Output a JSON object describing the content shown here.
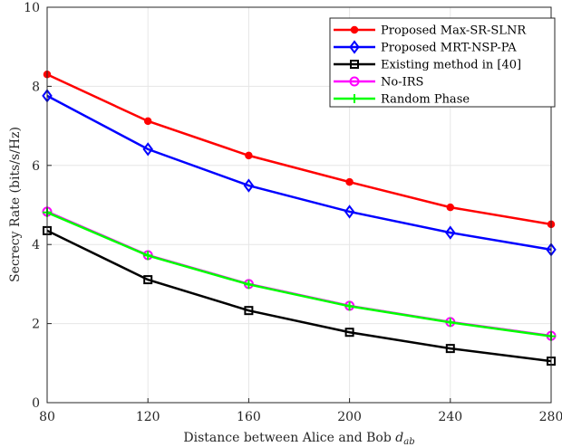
{
  "chart_data": {
    "type": "line",
    "title": "",
    "xlabel": "Distance between Alice and Bob",
    "xlabel_math": "d",
    "xlabel_sub": "ab",
    "ylabel": "Secrecy Rate (bits/s/Hz)",
    "xlim": [
      80,
      280
    ],
    "ylim": [
      0,
      10
    ],
    "xticks": [
      80,
      120,
      160,
      200,
      240,
      280
    ],
    "yticks": [
      0,
      2,
      4,
      6,
      8,
      10
    ],
    "grid": true,
    "legend_position": "top-right",
    "x": [
      80,
      120,
      160,
      200,
      240,
      280
    ],
    "series": [
      {
        "name": "Proposed Max-SR-SLNR",
        "color": "#ff0000",
        "marker": "asterisk",
        "values": [
          8.3,
          7.12,
          6.25,
          5.58,
          4.94,
          4.51
        ]
      },
      {
        "name": "Proposed MRT-NSP-PA",
        "color": "#0000ff",
        "marker": "diamond",
        "values": [
          7.76,
          6.41,
          5.49,
          4.83,
          4.3,
          3.87
        ]
      },
      {
        "name": "Existing method in [40]",
        "color": "#000000",
        "marker": "square",
        "values": [
          4.35,
          3.11,
          2.33,
          1.78,
          1.37,
          1.05
        ]
      },
      {
        "name": "No-IRS",
        "color": "#ff00ff",
        "marker": "circle",
        "values": [
          4.83,
          3.73,
          3.0,
          2.45,
          2.04,
          1.69
        ]
      },
      {
        "name": "Random Phase",
        "color": "#00ff00",
        "marker": "plus",
        "values": [
          4.81,
          3.72,
          2.99,
          2.44,
          2.03,
          1.68
        ]
      }
    ]
  }
}
